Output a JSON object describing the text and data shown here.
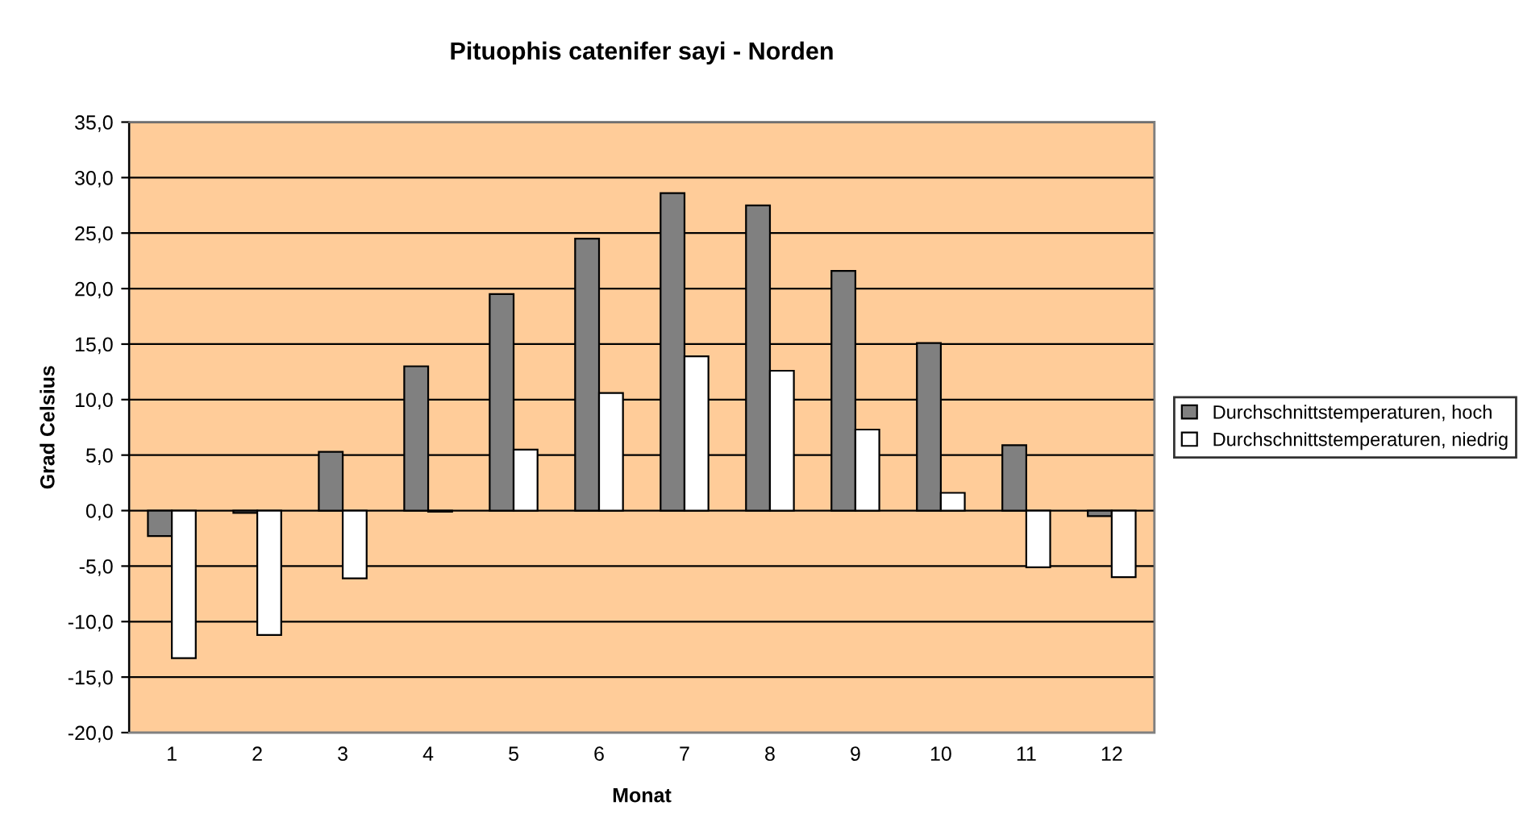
{
  "chart_data": {
    "type": "bar",
    "title": "Pituophis catenifer sayi - Norden",
    "xlabel": "Monat",
    "ylabel": "Grad Celsius",
    "categories": [
      "1",
      "2",
      "3",
      "4",
      "5",
      "6",
      "7",
      "8",
      "9",
      "10",
      "11",
      "12"
    ],
    "series": [
      {
        "name": "Durchschnittstemperaturen, hoch",
        "color": "#808080",
        "values": [
          -2.3,
          -0.2,
          5.3,
          13.0,
          19.5,
          24.5,
          28.6,
          27.5,
          21.6,
          15.1,
          5.9,
          -0.5
        ]
      },
      {
        "name": "Durchschnittstemperaturen, niedrig",
        "color": "#ffffff",
        "values": [
          -13.3,
          -11.2,
          -6.1,
          -0.1,
          5.5,
          10.6,
          13.9,
          12.6,
          7.3,
          1.6,
          -5.1,
          -6.0
        ]
      }
    ],
    "ylim": [
      -20,
      35
    ],
    "yticks": [
      {
        "value": -20,
        "label": "-20,0"
      },
      {
        "value": -15,
        "label": "-15,0"
      },
      {
        "value": -10,
        "label": "-10,0"
      },
      {
        "value": -5,
        "label": "-5,0"
      },
      {
        "value": 0,
        "label": "0,0"
      },
      {
        "value": 5,
        "label": "5,0"
      },
      {
        "value": 10,
        "label": "10,0"
      },
      {
        "value": 15,
        "label": "15,0"
      },
      {
        "value": 20,
        "label": "20,0"
      },
      {
        "value": 25,
        "label": "25,0"
      },
      {
        "value": 30,
        "label": "30,0"
      },
      {
        "value": 35,
        "label": "35,0"
      }
    ],
    "grid": "y",
    "legend": "right"
  }
}
